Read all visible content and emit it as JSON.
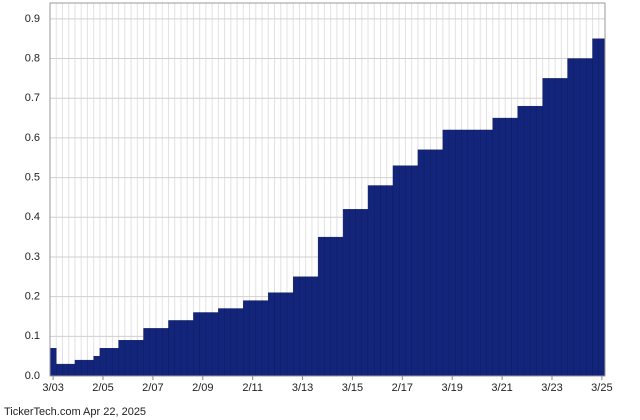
{
  "chart_data": {
    "type": "bar",
    "categories": [
      "3/03",
      null,
      null,
      null,
      null,
      null,
      null,
      null,
      "2/05",
      null,
      null,
      null,
      null,
      null,
      null,
      null,
      "2/07",
      null,
      null,
      null,
      null,
      null,
      null,
      null,
      "2/09",
      null,
      null,
      null,
      null,
      null,
      null,
      null,
      "2/11",
      null,
      null,
      null,
      null,
      null,
      null,
      null,
      "3/13",
      null,
      null,
      null,
      null,
      null,
      null,
      null,
      "3/15",
      null,
      null,
      null,
      null,
      null,
      null,
      null,
      "2/17",
      null,
      null,
      null,
      null,
      null,
      null,
      null,
      "3/19",
      null,
      null,
      null,
      null,
      null,
      null,
      null,
      "3/21",
      null,
      null,
      null,
      null,
      null,
      null,
      null,
      "3/23",
      null,
      null,
      null,
      null,
      null,
      null,
      null,
      "3/25"
    ],
    "values": [
      0.07,
      0.03,
      0.03,
      0.03,
      0.04,
      0.04,
      0.04,
      0.05,
      0.07,
      0.07,
      0.07,
      0.09,
      0.09,
      0.09,
      0.09,
      0.12,
      0.12,
      0.12,
      0.12,
      0.14,
      0.14,
      0.14,
      0.14,
      0.16,
      0.16,
      0.16,
      0.16,
      0.17,
      0.17,
      0.17,
      0.17,
      0.19,
      0.19,
      0.19,
      0.19,
      0.21,
      0.21,
      0.21,
      0.21,
      0.25,
      0.25,
      0.25,
      0.25,
      0.35,
      0.35,
      0.35,
      0.35,
      0.42,
      0.42,
      0.42,
      0.42,
      0.48,
      0.48,
      0.48,
      0.48,
      0.53,
      0.53,
      0.53,
      0.53,
      0.57,
      0.57,
      0.57,
      0.57,
      0.62,
      0.62,
      0.62,
      0.62,
      0.62,
      0.62,
      0.62,
      0.62,
      0.65,
      0.65,
      0.65,
      0.65,
      0.68,
      0.68,
      0.68,
      0.68,
      0.75,
      0.75,
      0.75,
      0.75,
      0.8,
      0.8,
      0.8,
      0.8,
      0.85,
      0.85
    ],
    "color": "#13257b",
    "ylim": [
      0,
      0.94
    ],
    "yticks": [
      {
        "value": 0,
        "label": "0.0"
      },
      0.1,
      0.2,
      0.3,
      0.4,
      0.5,
      0.6,
      0.7,
      0.8,
      0.9
    ],
    "grid": true,
    "footer": "TickerTech.com  Apr 22, 2025"
  }
}
